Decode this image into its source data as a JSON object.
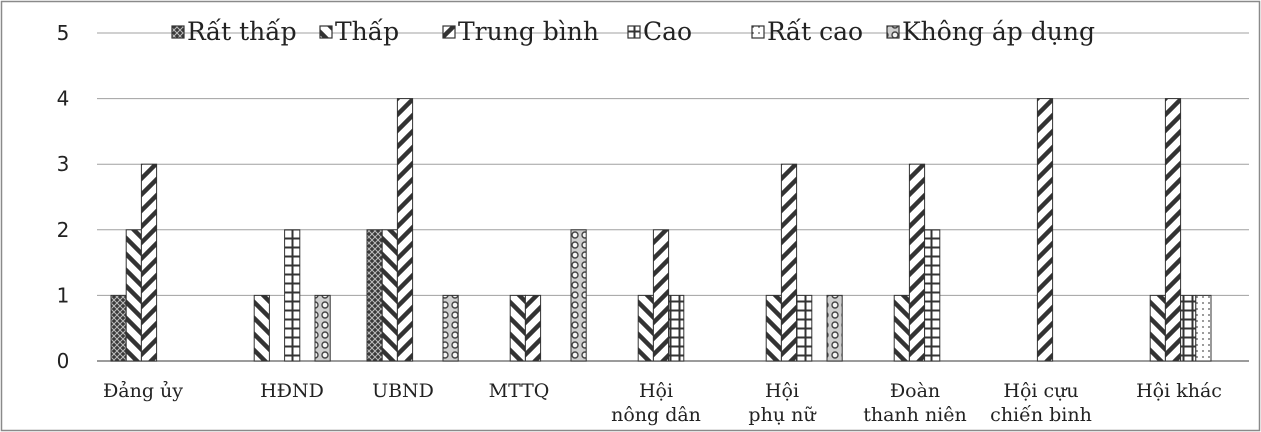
{
  "chart_data": {
    "type": "bar",
    "ylim": [
      0,
      5
    ],
    "yticks": [
      "0",
      "1",
      "2",
      "3",
      "4",
      "5"
    ],
    "grid": true,
    "legend_position": "top",
    "categories": [
      [
        "Đảng ủy"
      ],
      [
        "HĐND"
      ],
      [
        "UBND"
      ],
      [
        "MTTQ"
      ],
      [
        "Hội",
        "nông dân"
      ],
      [
        "Hội",
        "phụ nữ"
      ],
      [
        "Đoàn",
        "thanh niên"
      ],
      [
        "Hội cựu",
        "chiến binh"
      ],
      [
        "Hội khác"
      ]
    ],
    "series": [
      {
        "name": "Rất thấp",
        "pattern": "crosshatch",
        "values": [
          1,
          0,
          2,
          0,
          0,
          0,
          0,
          0,
          0
        ]
      },
      {
        "name": "Thấp",
        "pattern": "backslash",
        "values": [
          2,
          1,
          2,
          1,
          1,
          1,
          1,
          0,
          1
        ]
      },
      {
        "name": "Trung bình",
        "pattern": "slash",
        "values": [
          3,
          0,
          4,
          1,
          2,
          3,
          3,
          4,
          4
        ]
      },
      {
        "name": "Cao",
        "pattern": "grid",
        "values": [
          0,
          2,
          0,
          0,
          1,
          1,
          2,
          0,
          1
        ]
      },
      {
        "name": "Rất cao",
        "pattern": "dots",
        "values": [
          0,
          0,
          0,
          0,
          0,
          0,
          0,
          0,
          1
        ]
      },
      {
        "name": "Không áp dụng",
        "pattern": "circles",
        "values": [
          0,
          1,
          1,
          2,
          0,
          1,
          0,
          0,
          0
        ]
      }
    ],
    "colors": {
      "bar_dark": "#333333",
      "axis": "#7a7a7a",
      "grid": "#a0a0a0",
      "frame": "#8a8a8a"
    }
  }
}
